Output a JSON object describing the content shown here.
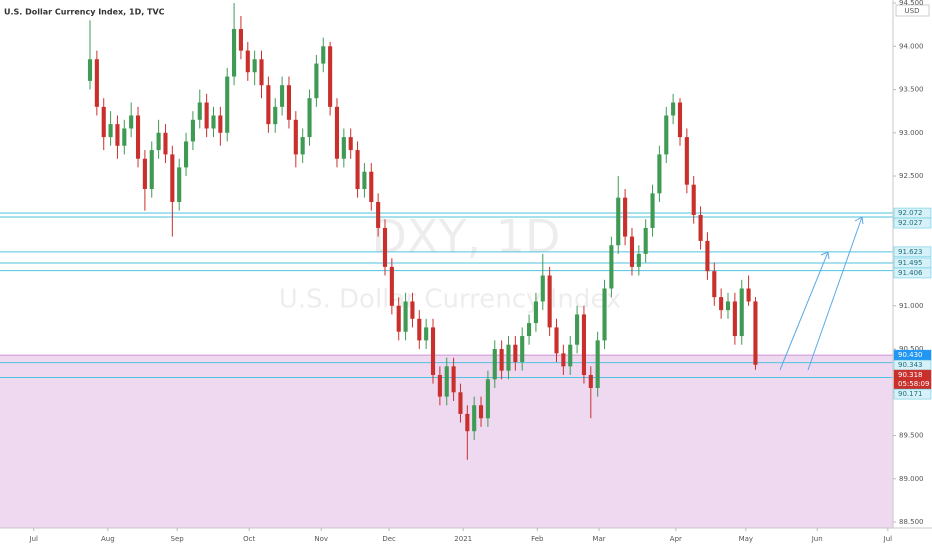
{
  "chart_data": {
    "type": "candlestick",
    "title": "U.S. Dollar Currency Index, 1D, TVC",
    "watermark_symbol": "DXY, 1D",
    "watermark_name": "U.S. Dollar Currency Index",
    "currency": "USD",
    "up_color": "#3f9a54",
    "down_color": "#c9302c",
    "level_color": "#4fc3e0",
    "zone_color": "#ce93d8",
    "ylim": [
      88.431,
      94.535
    ],
    "yticks": [
      {
        "value": 88.5,
        "label": "88.500"
      },
      {
        "value": 89,
        "label": "89.000"
      },
      {
        "value": 89.5,
        "label": "89.500"
      },
      {
        "value": 90,
        "label": "90.000"
      },
      {
        "value": 90.5,
        "label": "90.500"
      },
      {
        "value": 91,
        "label": "91.000"
      },
      {
        "value": 91.5,
        "label": "91.500"
      },
      {
        "value": 92,
        "label": "92.000"
      },
      {
        "value": 92.5,
        "label": "92.500"
      },
      {
        "value": 93,
        "label": "93.000"
      },
      {
        "value": 93.5,
        "label": "93.500"
      },
      {
        "value": 94,
        "label": "94.000"
      },
      {
        "value": 94.5,
        "label": "94.500"
      }
    ],
    "xlim": [
      -13.12,
      117.05
    ],
    "xticks": [
      {
        "value": -8.2,
        "label": "Jul"
      },
      {
        "value": 2.6,
        "label": "Aug"
      },
      {
        "value": 12.7,
        "label": "Sep"
      },
      {
        "value": 23.2,
        "label": "Oct"
      },
      {
        "value": 33.7,
        "label": "Nov"
      },
      {
        "value": 43.6,
        "label": "Dec"
      },
      {
        "value": 54.4,
        "label": "2021"
      },
      {
        "value": 65.2,
        "label": "Feb"
      },
      {
        "value": 74.2,
        "label": "Mar"
      },
      {
        "value": 85.4,
        "label": "Apr"
      },
      {
        "value": 95.6,
        "label": "May"
      },
      {
        "value": 106,
        "label": "Jun"
      },
      {
        "value": 116.3,
        "label": "Jul"
      }
    ],
    "levels": [
      92.072,
      92.027,
      91.623,
      91.495,
      91.406,
      90.343,
      90.171
    ],
    "zone_top": {
      "value": 90.43,
      "label": "90.430"
    },
    "last_price": 90.318,
    "countdown": "05:58:09",
    "candles": [
      [
        93.6,
        94.3,
        93.5,
        93.85
      ],
      [
        93.85,
        93.95,
        93.2,
        93.3
      ],
      [
        93.3,
        93.4,
        92.8,
        92.95
      ],
      [
        92.95,
        93.25,
        92.85,
        93.1
      ],
      [
        93.1,
        93.2,
        92.7,
        92.85
      ],
      [
        92.85,
        93.15,
        92.75,
        93.05
      ],
      [
        93.05,
        93.35,
        92.95,
        93.2
      ],
      [
        93.2,
        93.3,
        92.6,
        92.7
      ],
      [
        92.7,
        92.8,
        92.1,
        92.35
      ],
      [
        92.35,
        92.9,
        92.25,
        92.8
      ],
      [
        92.8,
        93.15,
        92.7,
        93.0
      ],
      [
        93.0,
        93.1,
        92.65,
        92.75
      ],
      [
        92.75,
        92.85,
        91.8,
        92.2
      ],
      [
        92.2,
        92.7,
        92.1,
        92.6
      ],
      [
        92.6,
        93.0,
        92.5,
        92.9
      ],
      [
        92.9,
        93.25,
        92.8,
        93.15
      ],
      [
        93.15,
        93.5,
        93.05,
        93.35
      ],
      [
        93.35,
        93.45,
        92.95,
        93.05
      ],
      [
        93.05,
        93.3,
        92.95,
        93.2
      ],
      [
        93.2,
        93.3,
        92.85,
        93.0
      ],
      [
        93.0,
        93.75,
        92.9,
        93.65
      ],
      [
        93.65,
        94.5,
        93.55,
        94.2
      ],
      [
        94.2,
        94.35,
        93.85,
        93.95
      ],
      [
        93.95,
        94.05,
        93.6,
        93.7
      ],
      [
        93.7,
        93.95,
        93.55,
        93.85
      ],
      [
        93.85,
        93.95,
        93.4,
        93.55
      ],
      [
        93.55,
        93.65,
        93.0,
        93.1
      ],
      [
        93.1,
        93.4,
        93.0,
        93.3
      ],
      [
        93.3,
        93.65,
        93.2,
        93.55
      ],
      [
        93.55,
        93.65,
        93.05,
        93.15
      ],
      [
        93.15,
        93.25,
        92.6,
        92.75
      ],
      [
        92.75,
        93.05,
        92.65,
        92.95
      ],
      [
        92.95,
        93.5,
        92.85,
        93.4
      ],
      [
        93.4,
        93.9,
        93.3,
        93.8
      ],
      [
        93.8,
        94.1,
        93.7,
        94.0
      ],
      [
        94.0,
        94.05,
        93.2,
        93.3
      ],
      [
        93.3,
        93.4,
        92.6,
        92.7
      ],
      [
        92.7,
        93.05,
        92.6,
        92.95
      ],
      [
        92.95,
        93.05,
        92.7,
        92.8
      ],
      [
        92.8,
        92.9,
        92.25,
        92.35
      ],
      [
        92.35,
        92.65,
        92.25,
        92.55
      ],
      [
        92.55,
        92.65,
        92.1,
        92.2
      ],
      [
        92.2,
        92.3,
        91.8,
        91.9
      ],
      [
        91.9,
        92.0,
        91.35,
        91.45
      ],
      [
        91.45,
        91.55,
        90.9,
        91.0
      ],
      [
        91.0,
        91.1,
        90.6,
        90.7
      ],
      [
        90.7,
        91.15,
        90.6,
        91.05
      ],
      [
        91.05,
        91.15,
        90.75,
        90.85
      ],
      [
        90.85,
        90.95,
        90.5,
        90.6
      ],
      [
        90.6,
        90.85,
        90.5,
        90.75
      ],
      [
        90.75,
        90.85,
        90.1,
        90.2
      ],
      [
        90.2,
        90.3,
        89.85,
        89.95
      ],
      [
        89.95,
        90.4,
        89.85,
        90.3
      ],
      [
        90.3,
        90.4,
        89.9,
        90.0
      ],
      [
        90.0,
        90.1,
        89.65,
        89.75
      ],
      [
        89.75,
        89.85,
        89.22,
        89.55
      ],
      [
        89.55,
        89.95,
        89.45,
        89.85
      ],
      [
        89.85,
        89.95,
        89.6,
        89.7
      ],
      [
        89.7,
        90.25,
        89.6,
        90.15
      ],
      [
        90.15,
        90.6,
        90.05,
        90.5
      ],
      [
        90.5,
        90.6,
        90.15,
        90.25
      ],
      [
        90.25,
        90.65,
        90.15,
        90.55
      ],
      [
        90.55,
        90.65,
        90.25,
        90.35
      ],
      [
        90.35,
        90.75,
        90.25,
        90.65
      ],
      [
        90.65,
        90.9,
        90.55,
        90.8
      ],
      [
        90.8,
        91.15,
        90.7,
        91.05
      ],
      [
        91.05,
        91.6,
        90.95,
        91.35
      ],
      [
        91.35,
        91.45,
        90.65,
        90.75
      ],
      [
        90.75,
        90.85,
        90.35,
        90.45
      ],
      [
        90.45,
        90.55,
        90.2,
        90.3
      ],
      [
        90.3,
        90.65,
        90.2,
        90.55
      ],
      [
        90.55,
        91.0,
        90.45,
        90.9
      ],
      [
        90.9,
        91.0,
        90.1,
        90.2
      ],
      [
        90.2,
        90.3,
        89.7,
        90.05
      ],
      [
        90.05,
        90.7,
        89.95,
        90.6
      ],
      [
        90.6,
        91.3,
        90.5,
        91.2
      ],
      [
        91.2,
        91.8,
        91.1,
        91.7
      ],
      [
        91.7,
        92.5,
        91.6,
        92.25
      ],
      [
        92.25,
        92.35,
        91.7,
        91.8
      ],
      [
        91.8,
        91.9,
        91.35,
        91.45
      ],
      [
        91.45,
        91.7,
        91.35,
        91.6
      ],
      [
        91.6,
        92.0,
        91.5,
        91.9
      ],
      [
        91.9,
        92.4,
        91.8,
        92.3
      ],
      [
        92.3,
        92.85,
        92.2,
        92.75
      ],
      [
        92.75,
        93.3,
        92.65,
        93.2
      ],
      [
        93.2,
        93.45,
        93.1,
        93.35
      ],
      [
        93.35,
        93.4,
        92.85,
        92.95
      ],
      [
        92.95,
        93.05,
        92.3,
        92.4
      ],
      [
        92.4,
        92.5,
        91.95,
        92.05
      ],
      [
        92.05,
        92.15,
        91.65,
        91.75
      ],
      [
        91.75,
        91.85,
        91.3,
        91.4
      ],
      [
        91.4,
        91.5,
        91.0,
        91.1
      ],
      [
        91.1,
        91.2,
        90.85,
        90.95
      ],
      [
        90.95,
        91.15,
        90.85,
        91.05
      ],
      [
        91.05,
        91.15,
        90.55,
        90.65
      ],
      [
        90.65,
        91.3,
        90.55,
        91.2
      ],
      [
        91.2,
        91.35,
        91.0,
        91.05
      ],
      [
        91.05,
        91.1,
        90.26,
        90.318
      ]
    ]
  }
}
